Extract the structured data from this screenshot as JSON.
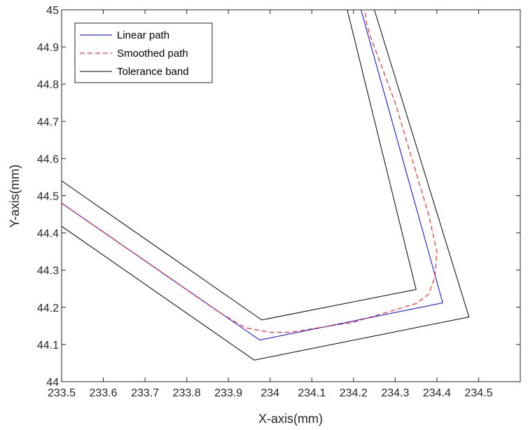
{
  "chart_data": {
    "type": "line",
    "xlabel": "X-axis(mm)",
    "ylabel": "Y-axis(mm)",
    "xlim": [
      233.5,
      234.6
    ],
    "ylim": [
      44.0,
      45.0
    ],
    "xticks": [
      233.5,
      233.6,
      233.7,
      233.8,
      233.9,
      234.0,
      234.1,
      234.2,
      234.3,
      234.4,
      234.5
    ],
    "xtick_labels": [
      "233.5",
      "233.6",
      "233.7",
      "233.8",
      "233.9",
      "234",
      "234.1",
      "234.2",
      "234.3",
      "234.4",
      "234.5"
    ],
    "yticks": [
      44.0,
      44.1,
      44.2,
      44.3,
      44.4,
      44.5,
      44.6,
      44.7,
      44.8,
      44.9,
      45.0
    ],
    "ytick_labels": [
      "44",
      "44.1",
      "44.2",
      "44.3",
      "44.4",
      "44.5",
      "44.6",
      "44.7",
      "44.8",
      "44.9",
      "45"
    ],
    "grid": false,
    "legend_position": "top-left",
    "legend": [
      "Linear path",
      "Smoothed path",
      "Tolerance band"
    ],
    "series": [
      {
        "name": "Linear path",
        "color": "#0000ff",
        "style": "solid",
        "x": [
          233.5,
          233.975,
          234.414,
          234.218
        ],
        "y": [
          44.48,
          44.112,
          44.212,
          45.0
        ]
      },
      {
        "name": "Smoothed path",
        "color": "#ff0000",
        "style": "dashed",
        "x": [
          233.5,
          233.88,
          233.94,
          234.0,
          234.05,
          234.2,
          234.35,
          234.38,
          234.395,
          234.4,
          234.38,
          234.3,
          234.24,
          234.23,
          234.228
        ],
        "y": [
          44.48,
          44.185,
          44.145,
          44.133,
          44.133,
          44.16,
          44.21,
          44.235,
          44.28,
          44.35,
          44.45,
          44.75,
          44.93,
          44.97,
          45.0
        ]
      },
      {
        "name": "Tolerance band",
        "color": "#000000",
        "style": "solid",
        "x": [
          233.5,
          233.98,
          234.35,
          234.185
        ],
        "y": [
          44.54,
          44.166,
          44.248,
          45.0
        ]
      },
      {
        "name": "Tolerance band",
        "color": "#000000",
        "style": "solid",
        "x": [
          233.5,
          233.962,
          234.477,
          234.25
        ],
        "y": [
          44.418,
          44.058,
          44.174,
          45.0
        ]
      }
    ]
  }
}
